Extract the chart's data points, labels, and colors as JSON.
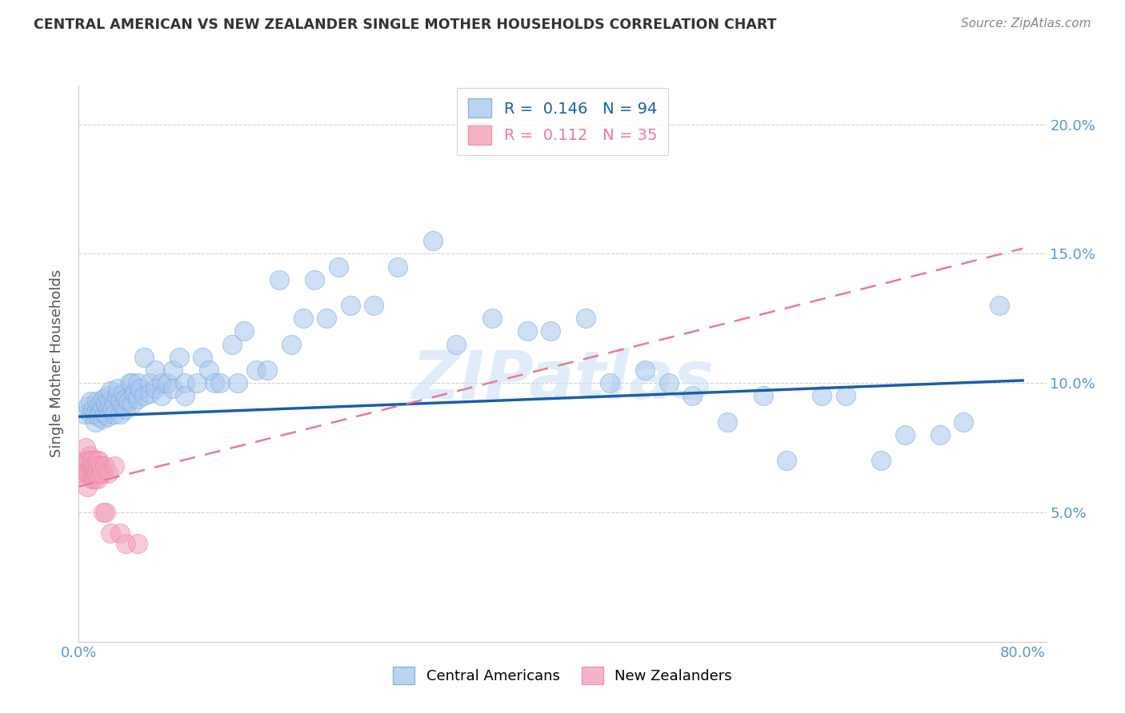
{
  "title": "CENTRAL AMERICAN VS NEW ZEALANDER SINGLE MOTHER HOUSEHOLDS CORRELATION CHART",
  "source": "Source: ZipAtlas.com",
  "ylabel": "Single Mother Households",
  "xlim": [
    0.0,
    0.82
  ],
  "ylim": [
    0.0,
    0.215
  ],
  "blue_R": 0.146,
  "blue_N": 94,
  "pink_R": 0.112,
  "pink_N": 35,
  "blue_color": "#A8C8F0",
  "pink_color": "#F4A0B8",
  "blue_line_color": "#1A5FA8",
  "pink_line_color": "#E87A9A",
  "legend_label_blue": "Central Americans",
  "legend_label_pink": "New Zealanders",
  "watermark": "ZIPatlas",
  "blue_scatter_x": [
    0.005,
    0.008,
    0.01,
    0.01,
    0.012,
    0.013,
    0.014,
    0.015,
    0.015,
    0.017,
    0.018,
    0.019,
    0.02,
    0.02,
    0.021,
    0.022,
    0.023,
    0.024,
    0.025,
    0.025,
    0.026,
    0.027,
    0.028,
    0.03,
    0.03,
    0.032,
    0.033,
    0.035,
    0.035,
    0.037,
    0.038,
    0.04,
    0.04,
    0.042,
    0.043,
    0.045,
    0.045,
    0.047,
    0.05,
    0.05,
    0.052,
    0.055,
    0.055,
    0.06,
    0.06,
    0.065,
    0.065,
    0.07,
    0.07,
    0.075,
    0.08,
    0.08,
    0.085,
    0.09,
    0.09,
    0.1,
    0.105,
    0.11,
    0.115,
    0.12,
    0.13,
    0.135,
    0.14,
    0.15,
    0.16,
    0.17,
    0.18,
    0.19,
    0.2,
    0.21,
    0.22,
    0.23,
    0.25,
    0.27,
    0.3,
    0.32,
    0.35,
    0.38,
    0.4,
    0.43,
    0.45,
    0.48,
    0.5,
    0.52,
    0.55,
    0.58,
    0.6,
    0.63,
    0.65,
    0.68,
    0.7,
    0.73,
    0.75,
    0.78
  ],
  "blue_scatter_y": [
    0.088,
    0.091,
    0.088,
    0.093,
    0.09,
    0.088,
    0.085,
    0.09,
    0.093,
    0.087,
    0.092,
    0.089,
    0.086,
    0.091,
    0.094,
    0.088,
    0.092,
    0.095,
    0.09,
    0.087,
    0.093,
    0.097,
    0.09,
    0.092,
    0.088,
    0.095,
    0.098,
    0.088,
    0.093,
    0.091,
    0.096,
    0.09,
    0.094,
    0.093,
    0.1,
    0.1,
    0.092,
    0.096,
    0.1,
    0.094,
    0.098,
    0.11,
    0.095,
    0.1,
    0.096,
    0.105,
    0.098,
    0.1,
    0.095,
    0.1,
    0.105,
    0.098,
    0.11,
    0.1,
    0.095,
    0.1,
    0.11,
    0.105,
    0.1,
    0.1,
    0.115,
    0.1,
    0.12,
    0.105,
    0.105,
    0.14,
    0.115,
    0.125,
    0.14,
    0.125,
    0.145,
    0.13,
    0.13,
    0.145,
    0.155,
    0.115,
    0.125,
    0.12,
    0.12,
    0.125,
    0.1,
    0.105,
    0.1,
    0.095,
    0.085,
    0.095,
    0.07,
    0.095,
    0.095,
    0.07,
    0.08,
    0.08,
    0.085,
    0.13
  ],
  "pink_scatter_x": [
    0.003,
    0.005,
    0.006,
    0.007,
    0.007,
    0.008,
    0.008,
    0.009,
    0.009,
    0.01,
    0.01,
    0.011,
    0.011,
    0.012,
    0.012,
    0.013,
    0.013,
    0.014,
    0.015,
    0.015,
    0.016,
    0.016,
    0.017,
    0.018,
    0.019,
    0.02,
    0.021,
    0.022,
    0.023,
    0.025,
    0.027,
    0.03,
    0.035,
    0.04,
    0.05
  ],
  "pink_scatter_y": [
    0.065,
    0.07,
    0.075,
    0.065,
    0.06,
    0.07,
    0.065,
    0.068,
    0.072,
    0.065,
    0.07,
    0.068,
    0.063,
    0.07,
    0.065,
    0.063,
    0.068,
    0.065,
    0.065,
    0.07,
    0.063,
    0.068,
    0.07,
    0.065,
    0.068,
    0.065,
    0.05,
    0.068,
    0.05,
    0.065,
    0.042,
    0.068,
    0.042,
    0.038,
    0.038
  ],
  "blue_line_x0": 0.0,
  "blue_line_y0": 0.087,
  "blue_line_x1": 0.8,
  "blue_line_y1": 0.101,
  "pink_line_x0": 0.0,
  "pink_line_y0": 0.06,
  "pink_line_x1": 0.8,
  "pink_line_y1": 0.152
}
